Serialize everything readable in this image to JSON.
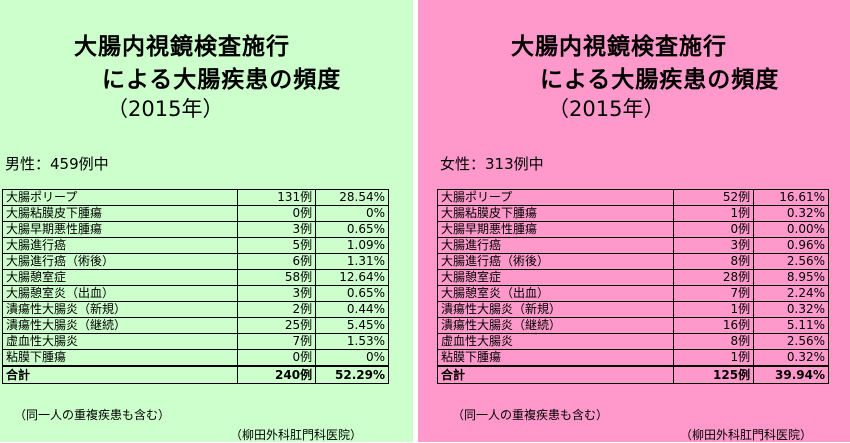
{
  "title_line1": "大腸内視鏡検査施行",
  "title_line2": "による大腸疾患の頻度",
  "title_year": "（2015年）",
  "male": {
    "count_label": "男性：459例中",
    "rows": [
      {
        "name": "大腸ポリープ",
        "cases": "131例",
        "pct": "28.54%"
      },
      {
        "name": "大腸粘膜皮下腫瘍",
        "cases": "0例",
        "pct": "0%"
      },
      {
        "name": "大腸早期悪性腫瘍",
        "cases": "3例",
        "pct": "0.65%"
      },
      {
        "name": "大腸進行癌",
        "cases": "5例",
        "pct": "1.09%"
      },
      {
        "name": "大腸進行癌（術後）",
        "cases": "6例",
        "pct": "1.31%"
      },
      {
        "name": "大腸憩室症",
        "cases": "58例",
        "pct": "12.64%"
      },
      {
        "name": "大腸憩室炎（出血）",
        "cases": "3例",
        "pct": "0.65%"
      },
      {
        "name": "潰瘍性大腸炎（新規）",
        "cases": "2例",
        "pct": "0.44%"
      },
      {
        "name": "潰瘍性大腸炎（継続）",
        "cases": "25例",
        "pct": "5.45%"
      },
      {
        "name": "虚血性大腸炎",
        "cases": "7例",
        "pct": "1.53%"
      },
      {
        "name": "粘膜下腫瘍",
        "cases": "0例",
        "pct": "0%"
      }
    ],
    "total": {
      "name": "合計",
      "cases": "240例",
      "pct": "52.29%"
    }
  },
  "female": {
    "count_label": "女性：313例中",
    "rows": [
      {
        "name": "大腸ポリープ",
        "cases": "52例",
        "pct": "16.61%"
      },
      {
        "name": "大腸粘膜皮下腫瘍",
        "cases": "1例",
        "pct": "0.32%"
      },
      {
        "name": "大腸早期悪性腫瘍",
        "cases": "0例",
        "pct": "0.00%"
      },
      {
        "name": "大腸進行癌",
        "cases": "3例",
        "pct": "0.96%"
      },
      {
        "name": "大腸進行癌（術後）",
        "cases": "8例",
        "pct": "2.56%"
      },
      {
        "name": "大腸憩室症",
        "cases": "28例",
        "pct": "8.95%"
      },
      {
        "name": "大腸憩室炎（出血）",
        "cases": "7例",
        "pct": "2.24%"
      },
      {
        "name": "潰瘍性大腸炎（新規）",
        "cases": "1例",
        "pct": "0.32%"
      },
      {
        "name": "潰瘍性大腸炎（継続）",
        "cases": "16例",
        "pct": "5.11%"
      },
      {
        "name": "虚血性大腸炎",
        "cases": "8例",
        "pct": "2.56%"
      },
      {
        "name": "粘膜下腫瘍",
        "cases": "1例",
        "pct": "0.32%"
      }
    ],
    "total": {
      "name": "合計",
      "cases": "125例",
      "pct": "39.94%"
    }
  },
  "note": "（同一人の重複疾患も含む）",
  "clinic": "（柳田外科肛門科医院）",
  "colors": {
    "male_bg": "#ccffcc",
    "female_bg": "#ff99cc"
  }
}
